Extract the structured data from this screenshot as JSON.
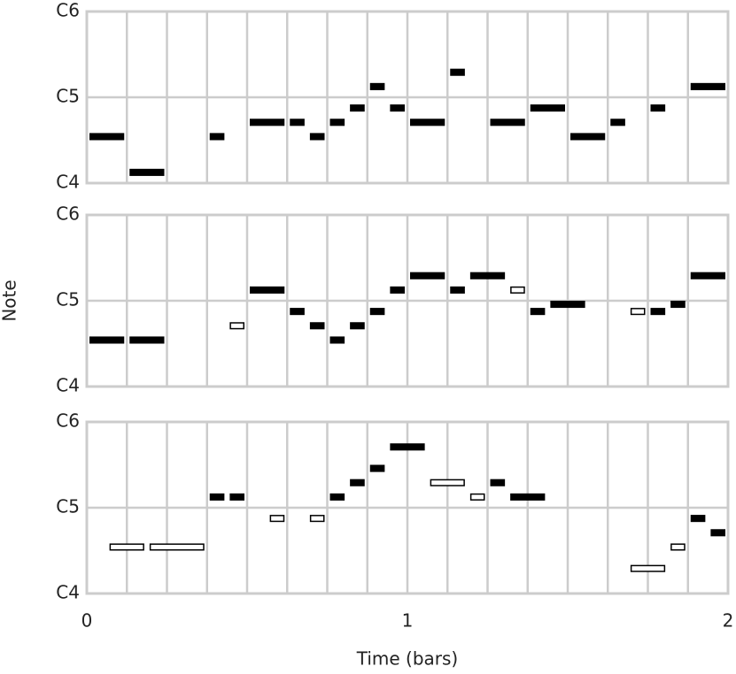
{
  "chart_data": [
    {
      "type": "pianoroll",
      "xlim": [
        0,
        2
      ],
      "ylim": [
        60,
        84
      ],
      "yticks": [
        {
          "value": 60,
          "label": "C4"
        },
        {
          "value": 72,
          "label": "C5"
        },
        {
          "value": 84,
          "label": "C6"
        }
      ],
      "xgrid": [
        0,
        0.125,
        0.25,
        0.375,
        0.5,
        0.625,
        0.75,
        0.875,
        1,
        1.125,
        1.25,
        1.375,
        1.5,
        1.625,
        1.75,
        1.875,
        2
      ],
      "grid_color": "#cccccc",
      "note_color": "#000000",
      "notes": [
        {
          "start": 0,
          "end": 0.125,
          "pitch": 66,
          "filled": true
        },
        {
          "start": 0.125,
          "end": 0.25,
          "pitch": 61,
          "filled": true
        },
        {
          "start": 0.375,
          "end": 0.4375,
          "pitch": 66,
          "filled": true
        },
        {
          "start": 0.5,
          "end": 0.625,
          "pitch": 68,
          "filled": true
        },
        {
          "start": 0.625,
          "end": 0.6875,
          "pitch": 68,
          "filled": true
        },
        {
          "start": 0.6875,
          "end": 0.75,
          "pitch": 66,
          "filled": true
        },
        {
          "start": 0.75,
          "end": 0.8125,
          "pitch": 68,
          "filled": true
        },
        {
          "start": 0.8125,
          "end": 0.875,
          "pitch": 70,
          "filled": true
        },
        {
          "start": 0.875,
          "end": 0.9375,
          "pitch": 73,
          "filled": true
        },
        {
          "start": 0.9375,
          "end": 1,
          "pitch": 70,
          "filled": true
        },
        {
          "start": 1,
          "end": 1.125,
          "pitch": 68,
          "filled": true
        },
        {
          "start": 1.125,
          "end": 1.1875,
          "pitch": 75,
          "filled": true
        },
        {
          "start": 1.25,
          "end": 1.375,
          "pitch": 68,
          "filled": true
        },
        {
          "start": 1.375,
          "end": 1.5,
          "pitch": 70,
          "filled": true
        },
        {
          "start": 1.5,
          "end": 1.625,
          "pitch": 66,
          "filled": true
        },
        {
          "start": 1.625,
          "end": 1.6875,
          "pitch": 68,
          "filled": true
        },
        {
          "start": 1.75,
          "end": 1.8125,
          "pitch": 70,
          "filled": true
        },
        {
          "start": 1.875,
          "end": 2,
          "pitch": 73,
          "filled": true
        }
      ]
    },
    {
      "type": "pianoroll",
      "xlim": [
        0,
        2
      ],
      "ylim": [
        60,
        84
      ],
      "ylabel": "Note",
      "yticks": [
        {
          "value": 60,
          "label": "C4"
        },
        {
          "value": 72,
          "label": "C5"
        },
        {
          "value": 84,
          "label": "C6"
        }
      ],
      "xgrid": [
        0,
        0.125,
        0.25,
        0.375,
        0.5,
        0.625,
        0.75,
        0.875,
        1,
        1.125,
        1.25,
        1.375,
        1.5,
        1.625,
        1.75,
        1.875,
        2
      ],
      "grid_color": "#cccccc",
      "note_color": "#000000",
      "notes": [
        {
          "start": 0,
          "end": 0.125,
          "pitch": 66,
          "filled": true
        },
        {
          "start": 0.125,
          "end": 0.25,
          "pitch": 66,
          "filled": true
        },
        {
          "start": 0.4375,
          "end": 0.5,
          "pitch": 68,
          "filled": false
        },
        {
          "start": 0.5,
          "end": 0.625,
          "pitch": 73,
          "filled": true
        },
        {
          "start": 0.625,
          "end": 0.6875,
          "pitch": 70,
          "filled": true
        },
        {
          "start": 0.6875,
          "end": 0.75,
          "pitch": 68,
          "filled": true
        },
        {
          "start": 0.75,
          "end": 0.8125,
          "pitch": 66,
          "filled": true
        },
        {
          "start": 0.8125,
          "end": 0.875,
          "pitch": 68,
          "filled": true
        },
        {
          "start": 0.875,
          "end": 0.9375,
          "pitch": 70,
          "filled": true
        },
        {
          "start": 0.9375,
          "end": 1,
          "pitch": 73,
          "filled": true
        },
        {
          "start": 1,
          "end": 1.125,
          "pitch": 75,
          "filled": true
        },
        {
          "start": 1.125,
          "end": 1.1875,
          "pitch": 73,
          "filled": true
        },
        {
          "start": 1.1875,
          "end": 1.3125,
          "pitch": 75,
          "filled": true
        },
        {
          "start": 1.3125,
          "end": 1.375,
          "pitch": 73,
          "filled": false
        },
        {
          "start": 1.375,
          "end": 1.4375,
          "pitch": 70,
          "filled": true
        },
        {
          "start": 1.4375,
          "end": 1.5625,
          "pitch": 71,
          "filled": true
        },
        {
          "start": 1.6875,
          "end": 1.75,
          "pitch": 70,
          "filled": false
        },
        {
          "start": 1.75,
          "end": 1.8125,
          "pitch": 70,
          "filled": true
        },
        {
          "start": 1.8125,
          "end": 1.875,
          "pitch": 71,
          "filled": true
        },
        {
          "start": 1.875,
          "end": 2,
          "pitch": 75,
          "filled": true
        }
      ]
    },
    {
      "type": "pianoroll",
      "xlim": [
        0,
        2
      ],
      "ylim": [
        60,
        84
      ],
      "xlabel": "Time (bars)",
      "xticks": [
        0,
        1,
        2
      ],
      "yticks": [
        {
          "value": 60,
          "label": "C4"
        },
        {
          "value": 72,
          "label": "C5"
        },
        {
          "value": 84,
          "label": "C6"
        }
      ],
      "xgrid": [
        0,
        0.125,
        0.25,
        0.375,
        0.5,
        0.625,
        0.75,
        0.875,
        1,
        1.125,
        1.25,
        1.375,
        1.5,
        1.625,
        1.75,
        1.875,
        2
      ],
      "grid_color": "#cccccc",
      "note_color": "#000000",
      "notes": [
        {
          "start": 0.0625,
          "end": 0.1875,
          "pitch": 66,
          "filled": false
        },
        {
          "start": 0.1875,
          "end": 0.375,
          "pitch": 66,
          "filled": false
        },
        {
          "start": 0.375,
          "end": 0.4375,
          "pitch": 73,
          "filled": true
        },
        {
          "start": 0.4375,
          "end": 0.5,
          "pitch": 73,
          "filled": true
        },
        {
          "start": 0.5625,
          "end": 0.625,
          "pitch": 70,
          "filled": false
        },
        {
          "start": 0.6875,
          "end": 0.75,
          "pitch": 70,
          "filled": false
        },
        {
          "start": 0.75,
          "end": 0.8125,
          "pitch": 73,
          "filled": true
        },
        {
          "start": 0.8125,
          "end": 0.875,
          "pitch": 75,
          "filled": true
        },
        {
          "start": 0.875,
          "end": 0.9375,
          "pitch": 77,
          "filled": true
        },
        {
          "start": 0.9375,
          "end": 1.0625,
          "pitch": 80,
          "filled": true
        },
        {
          "start": 1.0625,
          "end": 1.1875,
          "pitch": 75,
          "filled": false
        },
        {
          "start": 1.1875,
          "end": 1.25,
          "pitch": 73,
          "filled": false
        },
        {
          "start": 1.25,
          "end": 1.3125,
          "pitch": 75,
          "filled": true
        },
        {
          "start": 1.3125,
          "end": 1.4375,
          "pitch": 73,
          "filled": true
        },
        {
          "start": 1.6875,
          "end": 1.8125,
          "pitch": 63,
          "filled": false
        },
        {
          "start": 1.8125,
          "end": 1.875,
          "pitch": 66,
          "filled": false
        },
        {
          "start": 1.875,
          "end": 1.9375,
          "pitch": 70,
          "filled": true
        },
        {
          "start": 1.9375,
          "end": 2,
          "pitch": 68,
          "filled": true
        }
      ]
    }
  ]
}
